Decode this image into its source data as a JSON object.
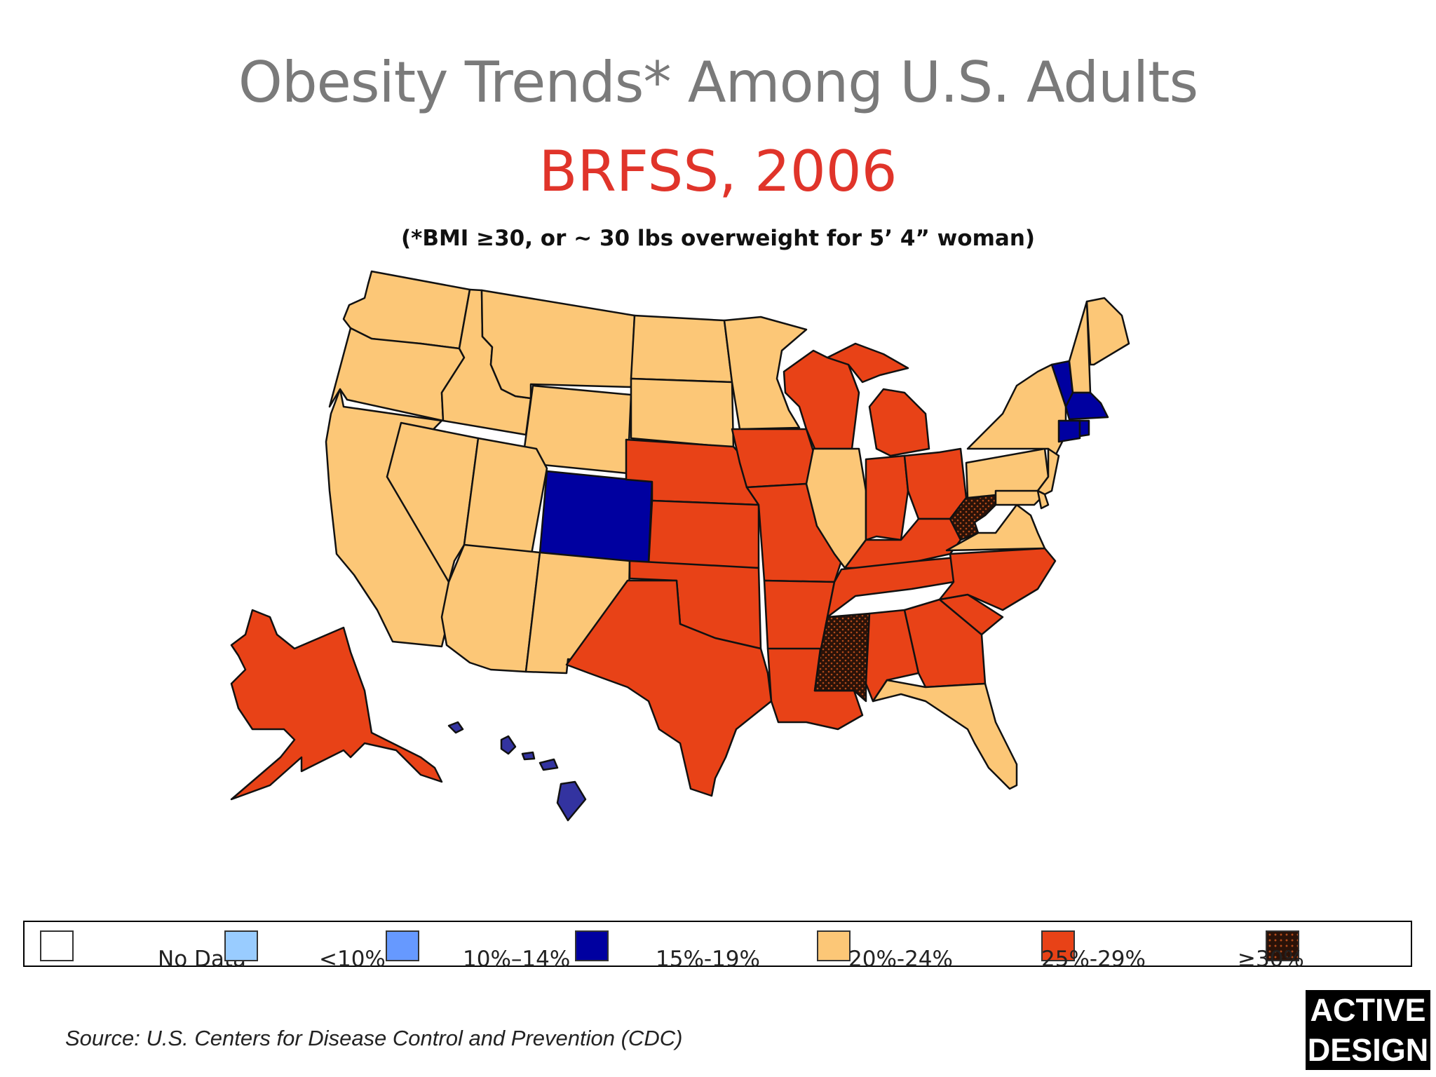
{
  "header": {
    "title": "Obesity Trends* Among U.S. Adults",
    "subtitle": "BRFSS, 2006",
    "note": "(*BMI ≥30, or ~ 30 lbs overweight for 5’ 4” woman)"
  },
  "colors": {
    "no_data": "#ffffff",
    "lt10": "#99ccff",
    "c10_14": "#6699ff",
    "c15_19": "#0000a0",
    "c20_24": "#fcc777",
    "c25_29": "#e84217",
    "c30plus": "#2a1208",
    "hawaii": "#3333a0",
    "outline": "#111111"
  },
  "legend": [
    {
      "label": "No Data",
      "color": "#ffffff"
    },
    {
      "label": "<10%",
      "color": "#99ccff"
    },
    {
      "label": "10%–14%",
      "color": "#6699ff"
    },
    {
      "label": "15%-19%",
      "color": "#0000a0"
    },
    {
      "label": "20%-24%",
      "color": "#fcc777"
    },
    {
      "label": "25%-29%",
      "color": "#e84217"
    },
    {
      "label": "≥30%",
      "color": "#2a1208"
    }
  ],
  "map_data": {
    "15%-19%": [
      "CO",
      "MA",
      "CT",
      "RI",
      "VT",
      "HI"
    ],
    "20%-24%": [
      "WA",
      "OR",
      "CA",
      "NV",
      "ID",
      "MT",
      "WY",
      "UT",
      "AZ",
      "NM",
      "ND",
      "SD",
      "MN",
      "IL",
      "PA",
      "NY",
      "NJ",
      "VA",
      "FL",
      "NH",
      "ME",
      "MD",
      "DE"
    ],
    "25%-29%": [
      "AK",
      "TX",
      "OK",
      "KS",
      "NE",
      "IA",
      "MO",
      "AR",
      "LA",
      "WI",
      "MI",
      "IN",
      "OH",
      "KY",
      "TN",
      "AL",
      "GA",
      "SC",
      "NC"
    ],
    "30%+": [
      "MS",
      "WV"
    ]
  },
  "footer": {
    "source": "Source: U.S. Centers for Disease Control and Prevention (CDC)",
    "logo_line1": "ACTIVE",
    "logo_line2": "DESIGN"
  }
}
